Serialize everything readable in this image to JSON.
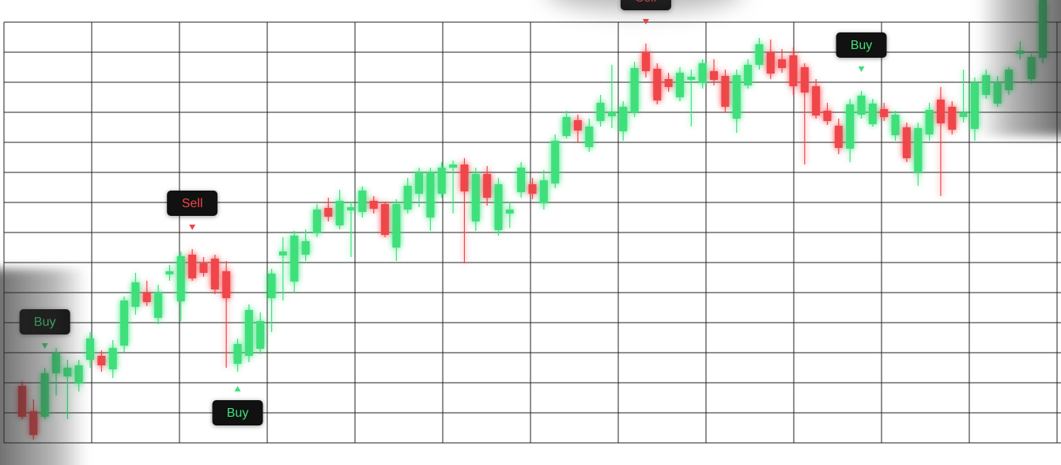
{
  "chart_data": {
    "type": "candlestick",
    "ylim": [
      0,
      588
    ],
    "up_color": "#3fe07c",
    "down_color": "#f0464a",
    "grid": true,
    "ohlc": [
      [
        100,
        106,
        58,
        61
      ],
      [
        68,
        83,
        32,
        38
      ],
      [
        61,
        123,
        58,
        116
      ],
      [
        116,
        148,
        88,
        141
      ],
      [
        112,
        133,
        58,
        123
      ],
      [
        103,
        133,
        93,
        126
      ],
      [
        133,
        168,
        123,
        160
      ],
      [
        138,
        145,
        118,
        126
      ],
      [
        121,
        158,
        110,
        148
      ],
      [
        151,
        213,
        143,
        208
      ],
      [
        200,
        243,
        190,
        231
      ],
      [
        218,
        233,
        201,
        206
      ],
      [
        186,
        228,
        178,
        218
      ],
      [
        241,
        253,
        233,
        245
      ],
      [
        207,
        270,
        182,
        264
      ],
      [
        266,
        273,
        233,
        236
      ],
      [
        255,
        263,
        238,
        243
      ],
      [
        261,
        266,
        216,
        222
      ],
      [
        245,
        258,
        123,
        211
      ],
      [
        128,
        160,
        118,
        153
      ],
      [
        138,
        203,
        130,
        196
      ],
      [
        147,
        193,
        140,
        182
      ],
      [
        211,
        248,
        168,
        242
      ],
      [
        265,
        288,
        208,
        270
      ],
      [
        232,
        296,
        218,
        290
      ],
      [
        266,
        298,
        258,
        283
      ],
      [
        293,
        330,
        288,
        323
      ],
      [
        325,
        338,
        308,
        314
      ],
      [
        303,
        348,
        298,
        334
      ],
      [
        322,
        333,
        263,
        326
      ],
      [
        320,
        352,
        313,
        347
      ],
      [
        334,
        340,
        318,
        324
      ],
      [
        330,
        333,
        288,
        291
      ],
      [
        275,
        336,
        258,
        330
      ],
      [
        323,
        363,
        318,
        353
      ],
      [
        343,
        376,
        326,
        370
      ],
      [
        313,
        376,
        296,
        370
      ],
      [
        343,
        383,
        338,
        376
      ],
      [
        376,
        385,
        318,
        380
      ],
      [
        380,
        388,
        255,
        346
      ],
      [
        308,
        376,
        296,
        368
      ],
      [
        368,
        378,
        328,
        338
      ],
      [
        297,
        363,
        290,
        355
      ],
      [
        318,
        333,
        300,
        323
      ],
      [
        345,
        383,
        338,
        376
      ],
      [
        355,
        363,
        336,
        343
      ],
      [
        331,
        373,
        323,
        360
      ],
      [
        356,
        418,
        350,
        410
      ],
      [
        416,
        448,
        413,
        440
      ],
      [
        436,
        443,
        408,
        423
      ],
      [
        402,
        438,
        396,
        428
      ],
      [
        435,
        468,
        428,
        458
      ],
      [
        441,
        506,
        426,
        446
      ],
      [
        422,
        460,
        410,
        453
      ],
      [
        446,
        510,
        440,
        502
      ],
      [
        522,
        533,
        490,
        498
      ],
      [
        501,
        508,
        456,
        461
      ],
      [
        488,
        496,
        472,
        478
      ],
      [
        465,
        503,
        460,
        496
      ],
      [
        487,
        500,
        428,
        491
      ],
      [
        483,
        513,
        476,
        508
      ],
      [
        498,
        513,
        480,
        487
      ],
      [
        492,
        500,
        446,
        453
      ],
      [
        438,
        500,
        420,
        493
      ],
      [
        480,
        513,
        476,
        506
      ],
      [
        506,
        540,
        500,
        532
      ],
      [
        522,
        538,
        488,
        495
      ],
      [
        513,
        526,
        496,
        502
      ],
      [
        518,
        528,
        468,
        479
      ],
      [
        503,
        508,
        380,
        471
      ],
      [
        479,
        488,
        438,
        442
      ],
      [
        448,
        458,
        430,
        435
      ],
      [
        429,
        438,
        393,
        401
      ],
      [
        400,
        463,
        383,
        456
      ],
      [
        443,
        473,
        438,
        467
      ],
      [
        431,
        463,
        428,
        457
      ],
      [
        450,
        458,
        435,
        440
      ],
      [
        417,
        448,
        410,
        443
      ],
      [
        427,
        433,
        383,
        388
      ],
      [
        370,
        433,
        353,
        426
      ],
      [
        418,
        458,
        410,
        449
      ],
      [
        462,
        478,
        340,
        432
      ],
      [
        453,
        460,
        418,
        424
      ],
      [
        440,
        500,
        433,
        445
      ],
      [
        425,
        490,
        410,
        483
      ],
      [
        468,
        500,
        463,
        493
      ],
      [
        457,
        492,
        453,
        484
      ],
      [
        474,
        503,
        468,
        500
      ],
      [
        520,
        536,
        513,
        524
      ],
      [
        488,
        520,
        482,
        516
      ],
      [
        515,
        588,
        508,
        588
      ]
    ],
    "signals": [
      {
        "index": 2,
        "label": "Buy",
        "position": "above"
      },
      {
        "index": 15,
        "label": "Sell",
        "position": "above"
      },
      {
        "index": 19,
        "label": "Buy",
        "position": "below"
      },
      {
        "index": 55,
        "label": "Sell",
        "position": "above"
      },
      {
        "index": 74,
        "label": "Buy",
        "position": "above"
      }
    ]
  }
}
